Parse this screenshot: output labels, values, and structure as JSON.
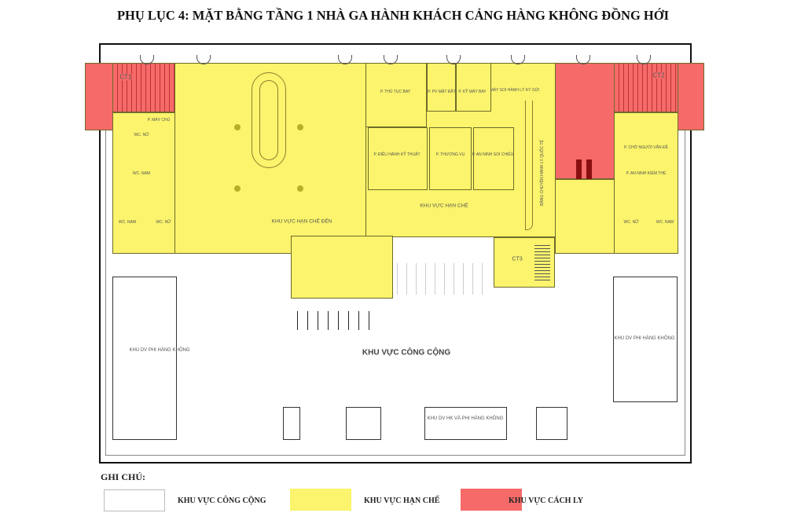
{
  "title": "PHỤ LỤC 4: MẶT BẰNG TẦNG 1 NHÀ GA HÀNH KHÁCH CẢNG HÀNG KHÔNG ĐỒNG HỚI",
  "zones": {
    "ct1": "CT1",
    "ct2": "CT2",
    "ct3": "CT3",
    "restricted_arrival": "KHU VỰC HẠN CHẾ ĐẾN",
    "restricted": "KHU VỰC HẠN CHẾ",
    "public": "KHU VỰC CÔNG CỘNG",
    "non_aviation_left": "KHU DV PHI HÀNG KHÔNG",
    "non_aviation_right": "KHU DV PHI HÀNG KHÔNG",
    "aviation_services": "KHU DV HK VÀ PHI HÀNG KHÔNG"
  },
  "rooms": {
    "server": "P. MÁY CHỦ",
    "wc_nu_1": "WC. NỮ",
    "wc_nam_1": "WC. NAM",
    "wc_nam_2": "WC. NAM",
    "wc_nu_2": "WC. NỮ",
    "checkin": "P. THỦ TỤC BAY",
    "ground": "P. PV MẶT ĐẤT",
    "aircraft": "P. KỸ MÁY BAY",
    "baggage_scan": "MÁY SOI HÀNH LÝ KÝ GỬI",
    "tech_ops": "P. ĐIỀU HÀNH KỸ THUẬT",
    "commerce": "P. THƯƠNG VỤ",
    "security_scan": "P. AN NINH SOI CHIẾU",
    "belt": "BĂNG CHUYỀN HÀNH LÝ QUỐC TẾ",
    "waiting": "P. CHỜ NGƯỜI VẤN ĐỀ",
    "security_check": "P. AN NINH KIỂM THỂ",
    "wc_nu_3": "WC. NỮ",
    "wc_nam_3": "WC. NAM"
  },
  "legend": {
    "heading": "GHI CHÚ:",
    "items": [
      {
        "label": "KHU VỰC CÔNG CỘNG",
        "color": "#ffffff"
      },
      {
        "label": "KHU VỰC HẠN CHẾ",
        "color": "#fbf46c"
      },
      {
        "label": "KHU VỰC CÁCH LY",
        "color": "#f66a6a"
      }
    ]
  }
}
